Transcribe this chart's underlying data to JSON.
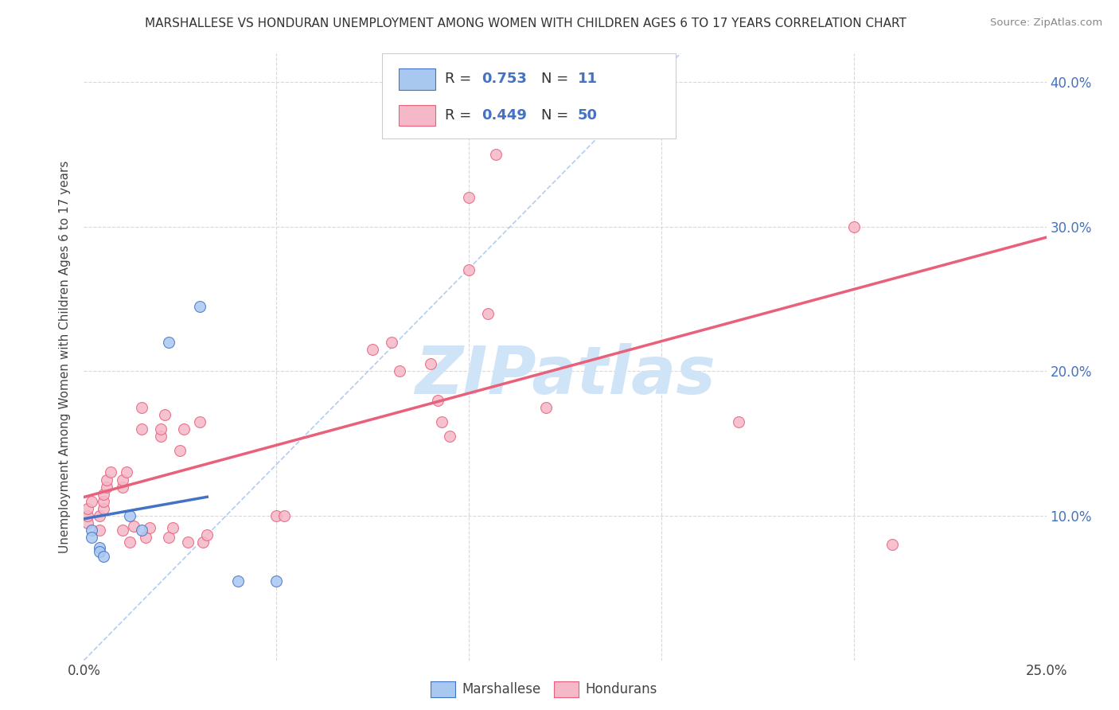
{
  "title": "MARSHALLESE VS HONDURAN UNEMPLOYMENT AMONG WOMEN WITH CHILDREN AGES 6 TO 17 YEARS CORRELATION CHART",
  "source": "Source: ZipAtlas.com",
  "ylabel": "Unemployment Among Women with Children Ages 6 to 17 years",
  "xlim": [
    0.0,
    0.25
  ],
  "ylim": [
    0.0,
    0.42
  ],
  "xticks": [
    0.0,
    0.05,
    0.1,
    0.15,
    0.2,
    0.25
  ],
  "xtick_labels": [
    "0.0%",
    "",
    "",
    "",
    "",
    "25.0%"
  ],
  "yticks_right": [
    0.1,
    0.2,
    0.3,
    0.4
  ],
  "ytick_right_labels": [
    "10.0%",
    "20.0%",
    "30.0%",
    "40.0%"
  ],
  "marshallese_color": "#a8c8f0",
  "honduran_color": "#f5b8c8",
  "marshallese_R": 0.753,
  "marshallese_N": 11,
  "honduran_R": 0.449,
  "honduran_N": 50,
  "marshallese_scatter": [
    [
      0.002,
      0.09
    ],
    [
      0.002,
      0.085
    ],
    [
      0.004,
      0.078
    ],
    [
      0.004,
      0.075
    ],
    [
      0.005,
      0.072
    ],
    [
      0.012,
      0.1
    ],
    [
      0.015,
      0.09
    ],
    [
      0.022,
      0.22
    ],
    [
      0.03,
      0.245
    ],
    [
      0.04,
      0.055
    ],
    [
      0.05,
      0.055
    ]
  ],
  "honduran_scatter": [
    [
      0.001,
      0.095
    ],
    [
      0.001,
      0.1
    ],
    [
      0.001,
      0.105
    ],
    [
      0.002,
      0.11
    ],
    [
      0.004,
      0.09
    ],
    [
      0.004,
      0.1
    ],
    [
      0.005,
      0.105
    ],
    [
      0.005,
      0.11
    ],
    [
      0.005,
      0.115
    ],
    [
      0.006,
      0.12
    ],
    [
      0.006,
      0.125
    ],
    [
      0.007,
      0.13
    ],
    [
      0.01,
      0.09
    ],
    [
      0.01,
      0.12
    ],
    [
      0.01,
      0.125
    ],
    [
      0.011,
      0.13
    ],
    [
      0.012,
      0.082
    ],
    [
      0.013,
      0.093
    ],
    [
      0.015,
      0.16
    ],
    [
      0.015,
      0.175
    ],
    [
      0.016,
      0.085
    ],
    [
      0.017,
      0.092
    ],
    [
      0.02,
      0.155
    ],
    [
      0.02,
      0.16
    ],
    [
      0.021,
      0.17
    ],
    [
      0.022,
      0.085
    ],
    [
      0.023,
      0.092
    ],
    [
      0.025,
      0.145
    ],
    [
      0.026,
      0.16
    ],
    [
      0.027,
      0.082
    ],
    [
      0.03,
      0.165
    ],
    [
      0.031,
      0.082
    ],
    [
      0.032,
      0.087
    ],
    [
      0.05,
      0.1
    ],
    [
      0.052,
      0.1
    ],
    [
      0.075,
      0.215
    ],
    [
      0.08,
      0.22
    ],
    [
      0.082,
      0.2
    ],
    [
      0.09,
      0.205
    ],
    [
      0.092,
      0.18
    ],
    [
      0.093,
      0.165
    ],
    [
      0.095,
      0.155
    ],
    [
      0.1,
      0.27
    ],
    [
      0.1,
      0.32
    ],
    [
      0.105,
      0.24
    ],
    [
      0.107,
      0.35
    ],
    [
      0.12,
      0.175
    ],
    [
      0.17,
      0.165
    ],
    [
      0.2,
      0.3
    ],
    [
      0.21,
      0.08
    ]
  ],
  "marshallese_line_color": "#4472c4",
  "honduran_line_color": "#e8607a",
  "diag_line_color": "#aac8f0",
  "watermark_color": "#d0e4f8",
  "background_color": "#ffffff",
  "grid_color": "#d8d8d8"
}
